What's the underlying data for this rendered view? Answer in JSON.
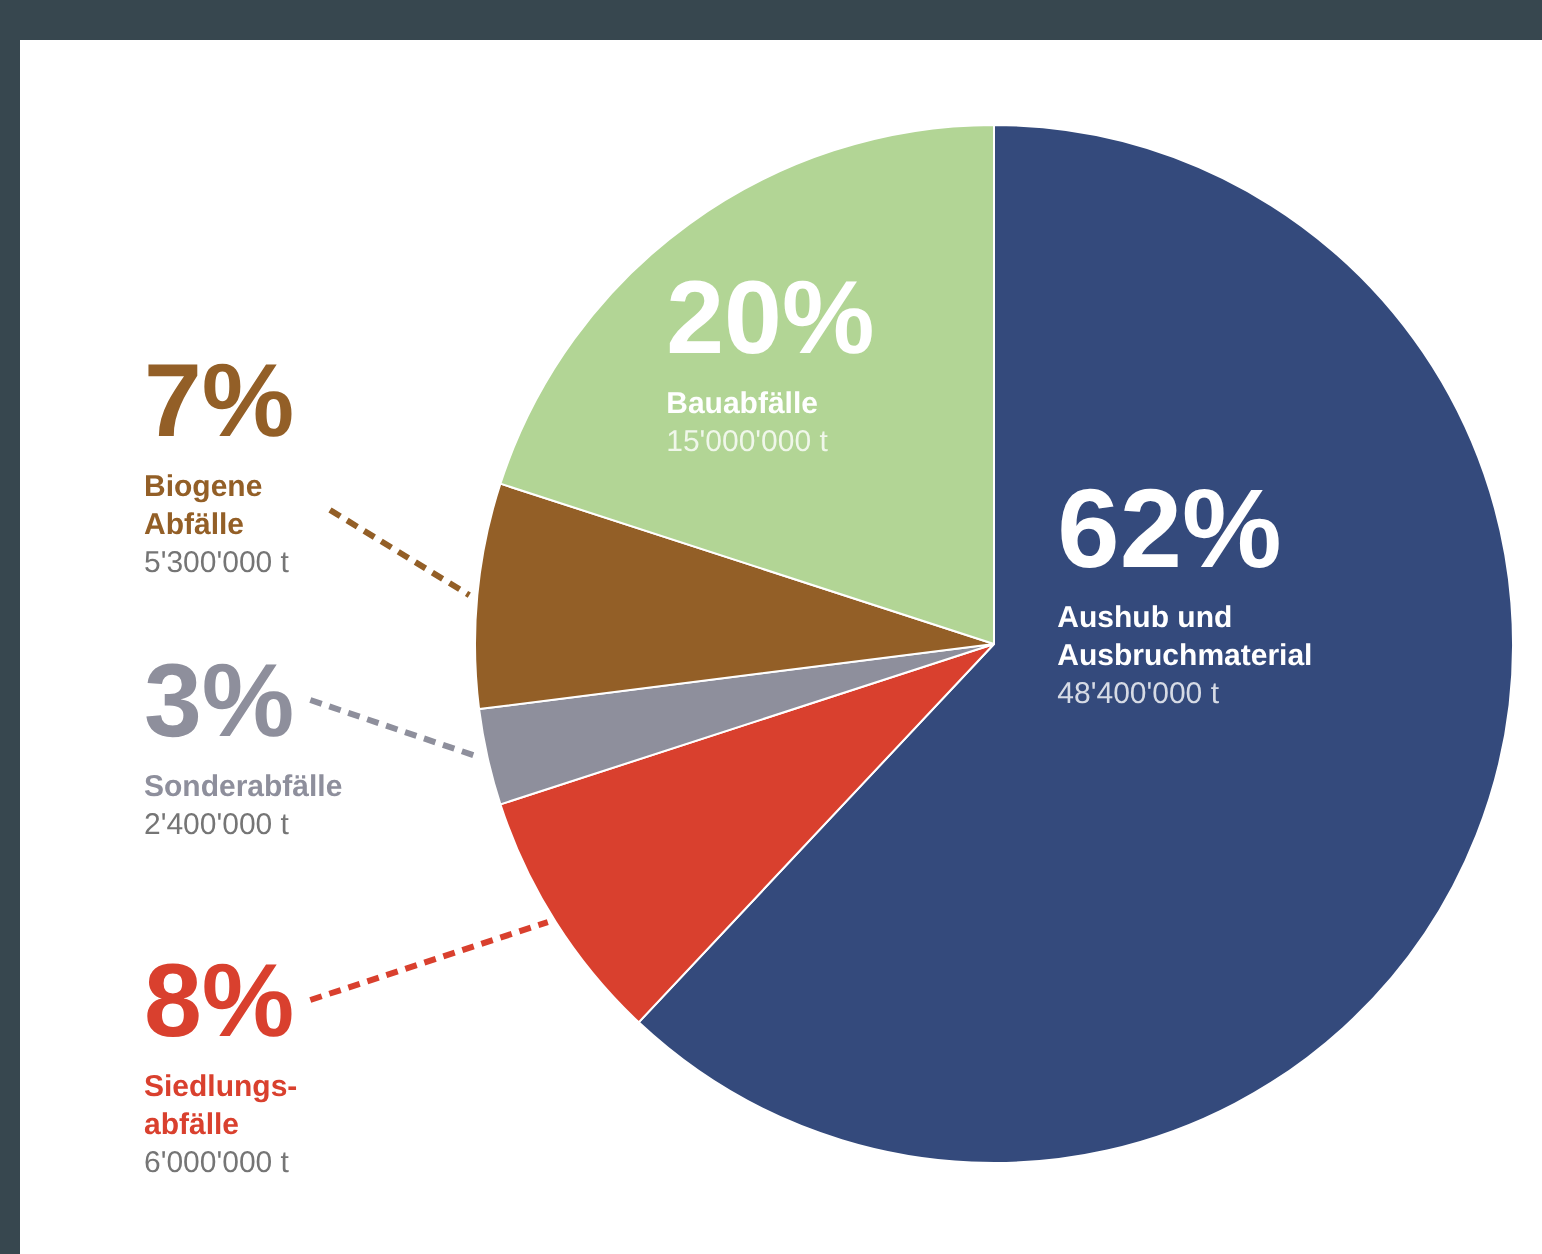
{
  "chart_data": {
    "type": "pie",
    "categories": [
      "Aushub und\nAusbruchmaterial",
      "Siedlungs-\nabfälle",
      "Sonderabfälle",
      "Biogene\nAbfälle",
      "Bauabfälle"
    ],
    "values": [
      62,
      8,
      3,
      7,
      20
    ],
    "colors": [
      "#344a7c",
      "#d9402e",
      "#8e8f9c",
      "#935f27",
      "#b2d595"
    ],
    "value_labels": [
      "62%",
      "8%",
      "3%",
      "7%",
      "20%"
    ],
    "annotations": [
      {
        "text": "48'400'000 t",
        "x": "Aushub und\nAusbruchmaterial"
      },
      {
        "text": "6'000'000 t",
        "x": "Siedlungs-\nabfälle"
      },
      {
        "text": "2'400'000 t",
        "x": "Sonderabfälle"
      },
      {
        "text": "5'300'000 t",
        "x": "Biogene\nAbfälle"
      },
      {
        "text": "15'000'000 t",
        "x": "Bauabfälle"
      }
    ],
    "legend": false
  }
}
